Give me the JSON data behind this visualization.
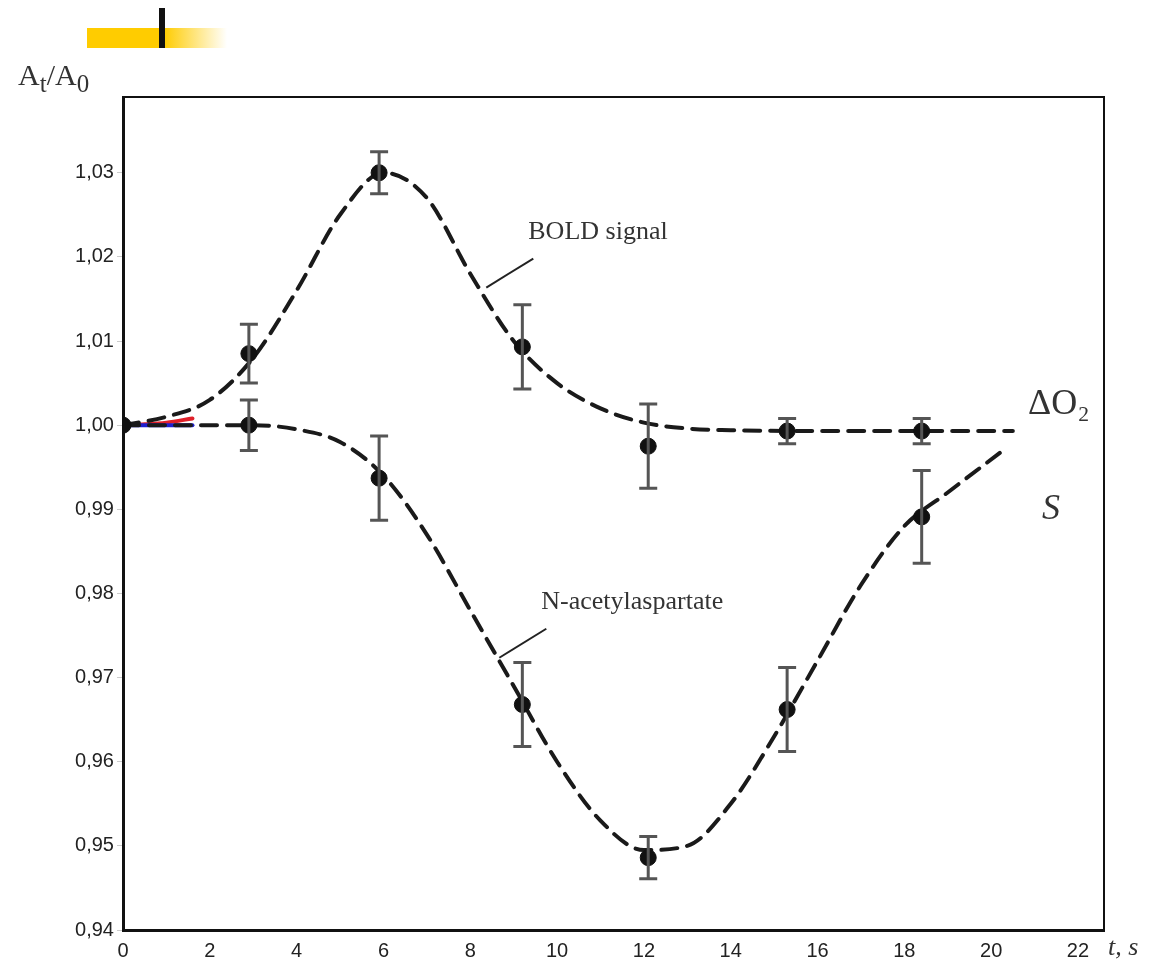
{
  "chart_data": {
    "type": "scatter",
    "xlabel": "t, s",
    "ylabel": "A$_{t}$/A$_{0}$",
    "xlim": [
      0,
      22.6
    ],
    "ylim": [
      0.94,
      1.039
    ],
    "xticks": [
      0,
      2,
      4,
      6,
      8,
      10,
      12,
      14,
      16,
      18,
      20,
      22
    ],
    "yticks": [
      {
        "value": 0.94,
        "label": "0,94"
      },
      {
        "value": 0.95,
        "label": "0,95"
      },
      {
        "value": 0.96,
        "label": "0,96"
      },
      {
        "value": 0.97,
        "label": "0,97"
      },
      {
        "value": 0.98,
        "label": "0,98"
      },
      {
        "value": 0.99,
        "label": "0,99"
      },
      {
        "value": 1.0,
        "label": "1,00"
      },
      {
        "value": 1.01,
        "label": "1,01"
      },
      {
        "value": 1.02,
        "label": "1,02"
      },
      {
        "value": 1.03,
        "label": "1,03"
      }
    ],
    "grid": false,
    "legend": false,
    "series": [
      {
        "type": "line",
        "line_style": "dashed",
        "marker": "none",
        "color": "#1a1a1a",
        "x": [
          0,
          1,
          2,
          3,
          4,
          5,
          6,
          7,
          8,
          9,
          10,
          11,
          12,
          13,
          14,
          16,
          18,
          20.5
        ],
        "values": [
          1.0,
          1.001,
          1.003,
          1.008,
          1.016,
          1.025,
          1.03,
          1.027,
          1.018,
          1.01,
          1.005,
          1.002,
          1.0003,
          0.9996,
          0.9994,
          0.9993,
          0.9993,
          0.9993
        ]
      },
      {
        "type": "line",
        "line_style": "dashed",
        "marker": "none",
        "color": "#1a1a1a",
        "x": [
          0,
          2,
          3,
          4,
          5,
          6,
          7,
          8,
          9,
          10,
          11,
          12,
          13,
          14,
          15,
          16,
          17,
          18,
          19,
          20.2
        ],
        "values": [
          1.0,
          1.0,
          1.0,
          0.9995,
          0.998,
          0.994,
          0.987,
          0.978,
          0.969,
          0.96,
          0.953,
          0.9495,
          0.95,
          0.955,
          0.963,
          0.972,
          0.981,
          0.988,
          0.992,
          0.9967
        ]
      },
      {
        "type": "line",
        "line_style": "solid",
        "marker": "none",
        "color": "#1f1fd0",
        "x": [
          0,
          1.6
        ],
        "values": [
          1.0,
          1.0
        ]
      },
      {
        "type": "line",
        "line_style": "solid",
        "marker": "none",
        "color": "#e0202a",
        "x": [
          0,
          0.5,
          1,
          1.6
        ],
        "values": [
          1.0,
          1.0001,
          1.0003,
          1.0008
        ]
      },
      {
        "type": "scatter",
        "marker": "circle",
        "color": "#111111",
        "x": [
          0,
          2.9,
          5.9,
          9.2,
          12.1,
          15.3,
          18.4
        ],
        "values": [
          1.0,
          1.0085,
          1.03,
          1.0093,
          0.9975,
          0.9993,
          0.9993
        ],
        "errors": [
          null,
          0.0035,
          0.0025,
          0.005,
          0.005,
          0.0015,
          0.0015
        ]
      },
      {
        "type": "scatter",
        "marker": "circle",
        "color": "#111111",
        "x": [
          2.9,
          5.9,
          9.2,
          12.1,
          15.3,
          18.4
        ],
        "values": [
          1.0,
          0.9937,
          0.9668,
          0.9486,
          0.9662,
          0.9891
        ],
        "errors": [
          0.003,
          0.005,
          0.005,
          0.0025,
          0.005,
          0.0055
        ]
      }
    ],
    "annotations": [
      {
        "text": "BOLD signal",
        "x": 8.3,
        "y": 1.016
      },
      {
        "text": "N-acetylaspartate",
        "x": 8.6,
        "y": 0.972
      },
      "ΔO₂",
      "S"
    ]
  }
}
